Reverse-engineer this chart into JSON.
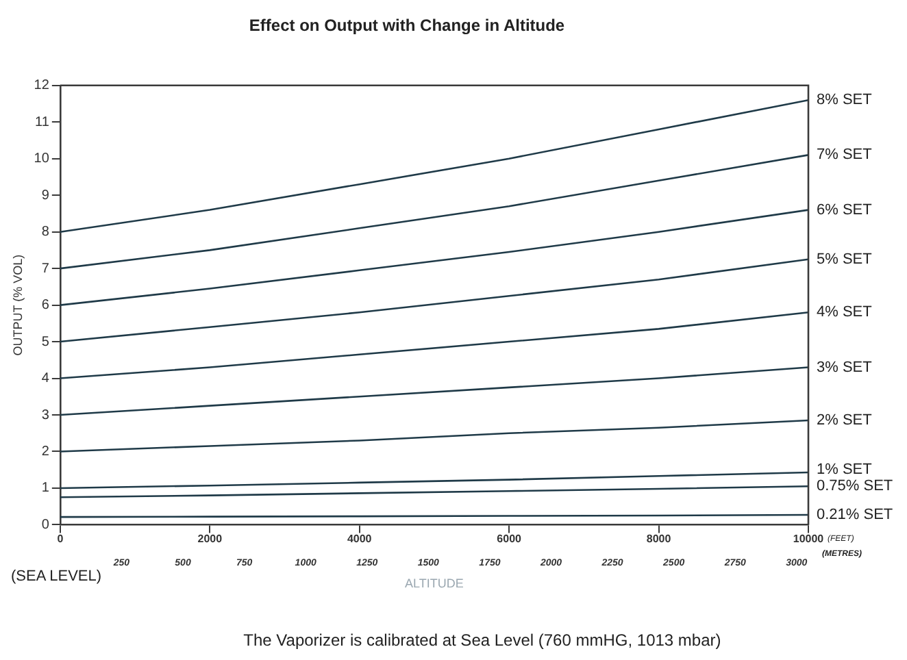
{
  "chart_data": {
    "type": "line",
    "title": "Effect on Output with Change in Altitude",
    "xlabel": "ALTITUDE",
    "ylabel": "OUTPUT (% VOL)",
    "x": [
      0,
      2000,
      4000,
      6000,
      8000,
      10000
    ],
    "xlim": [
      0,
      10000
    ],
    "xticks": [
      0,
      2000,
      4000,
      6000,
      8000,
      10000
    ],
    "x2lim": [
      0,
      3048
    ],
    "x2ticks": [
      250,
      500,
      750,
      1000,
      1250,
      1500,
      1750,
      2000,
      2250,
      2500,
      2750,
      3000
    ],
    "ylim": [
      0,
      12
    ],
    "yticks": [
      0,
      1,
      2,
      3,
      4,
      5,
      6,
      7,
      8,
      9,
      10,
      11,
      12
    ],
    "grid": false,
    "legend": false,
    "marker": "none",
    "line_style": "solid",
    "series": [
      {
        "name": "8% SET",
        "color": "#1f3a48",
        "values": [
          8,
          8.6,
          9.3,
          10.0,
          10.8,
          11.6
        ]
      },
      {
        "name": "7% SET",
        "color": "#1f3a48",
        "values": [
          7,
          7.5,
          8.1,
          8.7,
          9.4,
          10.1
        ]
      },
      {
        "name": "6% SET",
        "color": "#1f3a48",
        "values": [
          6,
          6.45,
          6.95,
          7.45,
          8.0,
          8.6
        ]
      },
      {
        "name": "5% SET",
        "color": "#1f3a48",
        "values": [
          5,
          5.4,
          5.8,
          6.25,
          6.7,
          7.25
        ]
      },
      {
        "name": "4% SET",
        "color": "#1f3a48",
        "values": [
          4,
          4.3,
          4.65,
          5.0,
          5.35,
          5.8
        ]
      },
      {
        "name": "3% SET",
        "color": "#1f3a48",
        "values": [
          3,
          3.25,
          3.5,
          3.75,
          4.0,
          4.3
        ]
      },
      {
        "name": "2% SET",
        "color": "#1f3a48",
        "values": [
          2,
          2.15,
          2.3,
          2.5,
          2.65,
          2.85
        ]
      },
      {
        "name": "1% SET",
        "color": "#1f3a48",
        "values": [
          1,
          1.07,
          1.15,
          1.23,
          1.33,
          1.43
        ]
      },
      {
        "name": "0.75% SET",
        "color": "#1f3a48",
        "values": [
          0.75,
          0.8,
          0.86,
          0.92,
          0.98,
          1.05
        ]
      },
      {
        "name": "0.21% SET",
        "color": "#1f3a48",
        "values": [
          0.21,
          0.22,
          0.23,
          0.24,
          0.25,
          0.27
        ]
      }
    ],
    "annotations": [
      "(SEA LEVEL)",
      "(FEET)",
      "(METRES)",
      "The Vaporizer is calibrated at Sea Level (760 mmHG, 1013 mbar)"
    ]
  }
}
